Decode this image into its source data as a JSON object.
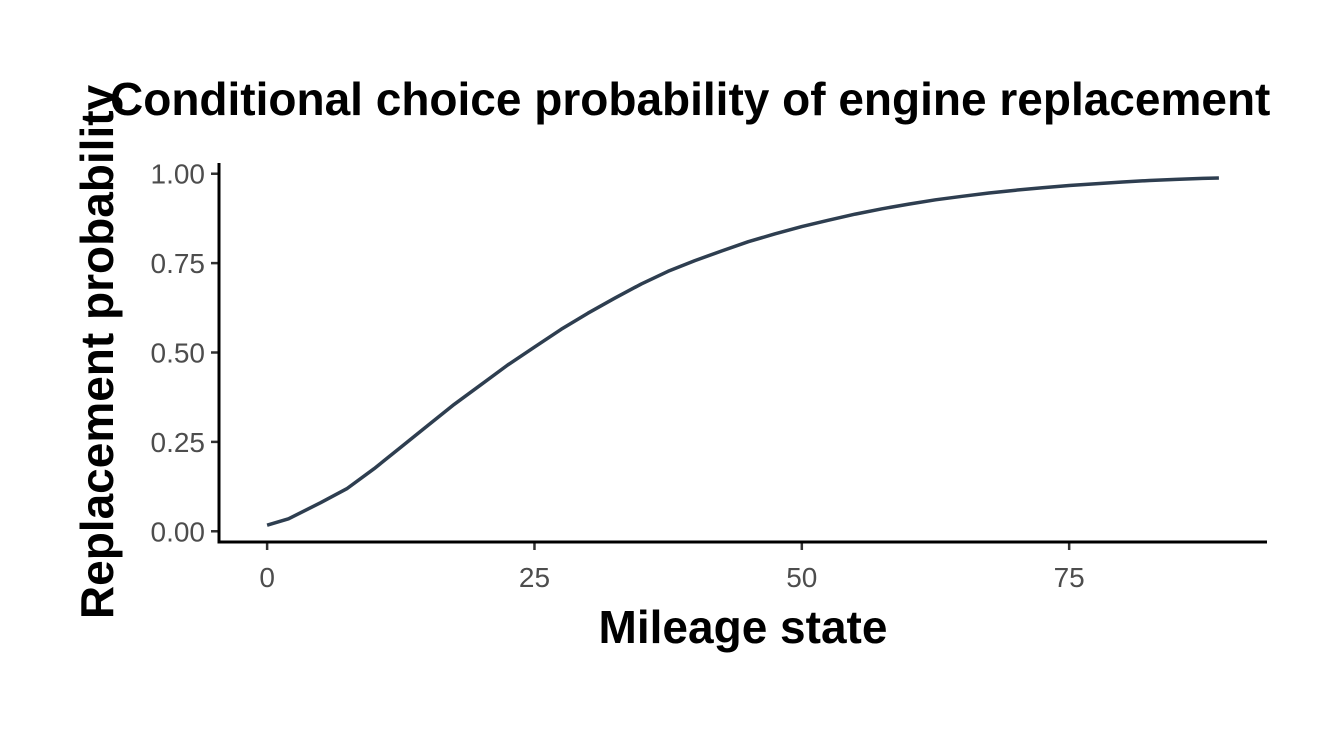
{
  "chart_data": {
    "type": "line",
    "title": "Conditional choice probability of engine replacement",
    "xlabel": "Mileage state",
    "ylabel": "Replacement probability",
    "xlim": [
      -4.5,
      93.5
    ],
    "ylim": [
      -0.03,
      1.03
    ],
    "x_ticks": [
      0,
      25,
      50,
      75
    ],
    "x_tick_labels": [
      "0",
      "25",
      "50",
      "75"
    ],
    "y_ticks": [
      0,
      0.25,
      0.5,
      0.75,
      1
    ],
    "y_tick_labels": [
      "0.00",
      "0.25",
      "0.50",
      "0.75",
      "1.00"
    ],
    "grid": false,
    "legend": "none",
    "line_color": "#2e3e50",
    "series": [
      {
        "x": [
          0,
          2,
          5,
          7.5,
          10,
          12.5,
          15,
          17.5,
          20,
          22.5,
          25,
          27.5,
          30,
          32.5,
          35,
          37.5,
          40,
          42.5,
          45,
          47.5,
          50,
          52.5,
          55,
          57.5,
          60,
          62.5,
          65,
          67.5,
          70,
          72.5,
          75,
          77.5,
          80,
          82.5,
          85,
          87.5,
          89
        ],
        "y": [
          0.017,
          0.035,
          0.08,
          0.12,
          0.175,
          0.235,
          0.295,
          0.355,
          0.41,
          0.465,
          0.515,
          0.565,
          0.61,
          0.652,
          0.692,
          0.727,
          0.757,
          0.784,
          0.81,
          0.832,
          0.852,
          0.87,
          0.887,
          0.902,
          0.915,
          0.927,
          0.937,
          0.946,
          0.954,
          0.961,
          0.967,
          0.972,
          0.977,
          0.981,
          0.984,
          0.987,
          0.988
        ]
      }
    ]
  }
}
